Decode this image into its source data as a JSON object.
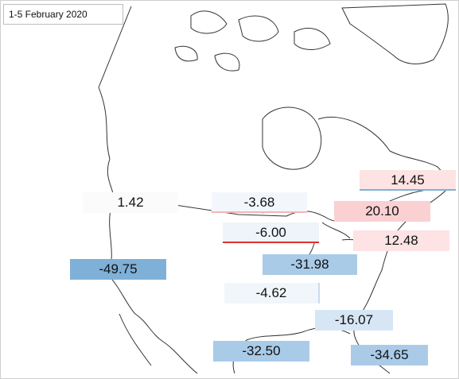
{
  "title": "1-5 February 2020",
  "colors": {
    "strong_blue": "#7fb0d8",
    "light_blue": "#a9cbe8",
    "pale_blue": "#d6e6f4",
    "very_pale_blue": "#eef4fa",
    "pink": "#fbd0d2",
    "light_pink": "#fde3e4",
    "land_outline": "#333333"
  },
  "labels": [
    {
      "id": "label-west",
      "value": "1.42",
      "color": "#fcfbfb"
    },
    {
      "id": "label-pacific-sw",
      "value": "-49.75",
      "color": "#7fb0d8"
    },
    {
      "id": "label-north-central",
      "value": "-3.68",
      "color": "#f3f7fc"
    },
    {
      "id": "label-great-lakes-west",
      "value": "-6.00",
      "color": "#eef4fa"
    },
    {
      "id": "label-midwest",
      "value": "-31.98",
      "color": "#a9cbe8"
    },
    {
      "id": "label-south-central",
      "value": "-4.62",
      "color": "#f1f6fb"
    },
    {
      "id": "label-southeast-inland",
      "value": "-16.07",
      "color": "#d6e6f4"
    },
    {
      "id": "label-texas-gulf",
      "value": "-32.50",
      "color": "#a9cbe8"
    },
    {
      "id": "label-florida",
      "value": "-34.65",
      "color": "#a9cbe8"
    },
    {
      "id": "label-new-england",
      "value": "14.45",
      "color": "#fde3e4"
    },
    {
      "id": "label-northeast",
      "value": "20.10",
      "color": "#fbd0d2"
    },
    {
      "id": "label-mid-atlantic",
      "value": "12.48",
      "color": "#fde3e4"
    }
  ]
}
